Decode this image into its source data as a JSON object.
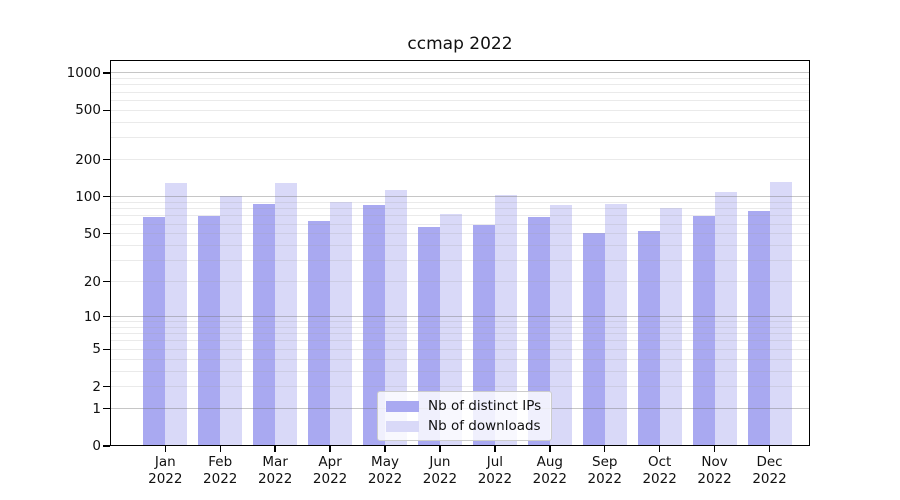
{
  "chart_data": {
    "type": "bar",
    "title": "ccmap 2022",
    "categories": [
      "Jan 2022",
      "Feb 2022",
      "Mar 2022",
      "Apr 2022",
      "May 2022",
      "Jun 2022",
      "Jul 2022",
      "Aug 2022",
      "Sep 2022",
      "Oct 2022",
      "Nov 2022",
      "Dec 2022"
    ],
    "series": [
      {
        "name": "Nb of distinct IPs",
        "color": "#a9a9f1",
        "values": [
          68,
          70,
          87,
          63,
          85,
          57,
          59,
          69,
          51,
          53,
          70,
          77
        ]
      },
      {
        "name": "Nb of downloads",
        "color": "#d9d9f8",
        "values": [
          130,
          101,
          130,
          90,
          113,
          72,
          104,
          85,
          87,
          81,
          110,
          133
        ]
      }
    ],
    "yscale": "symlog",
    "yticks": [
      1000,
      500,
      200,
      100,
      50,
      20,
      10,
      5,
      2,
      1,
      0
    ],
    "ylim": [
      0,
      1285
    ],
    "xlabel": "",
    "ylabel": "",
    "grid": "both",
    "legend_position": "lower center"
  }
}
